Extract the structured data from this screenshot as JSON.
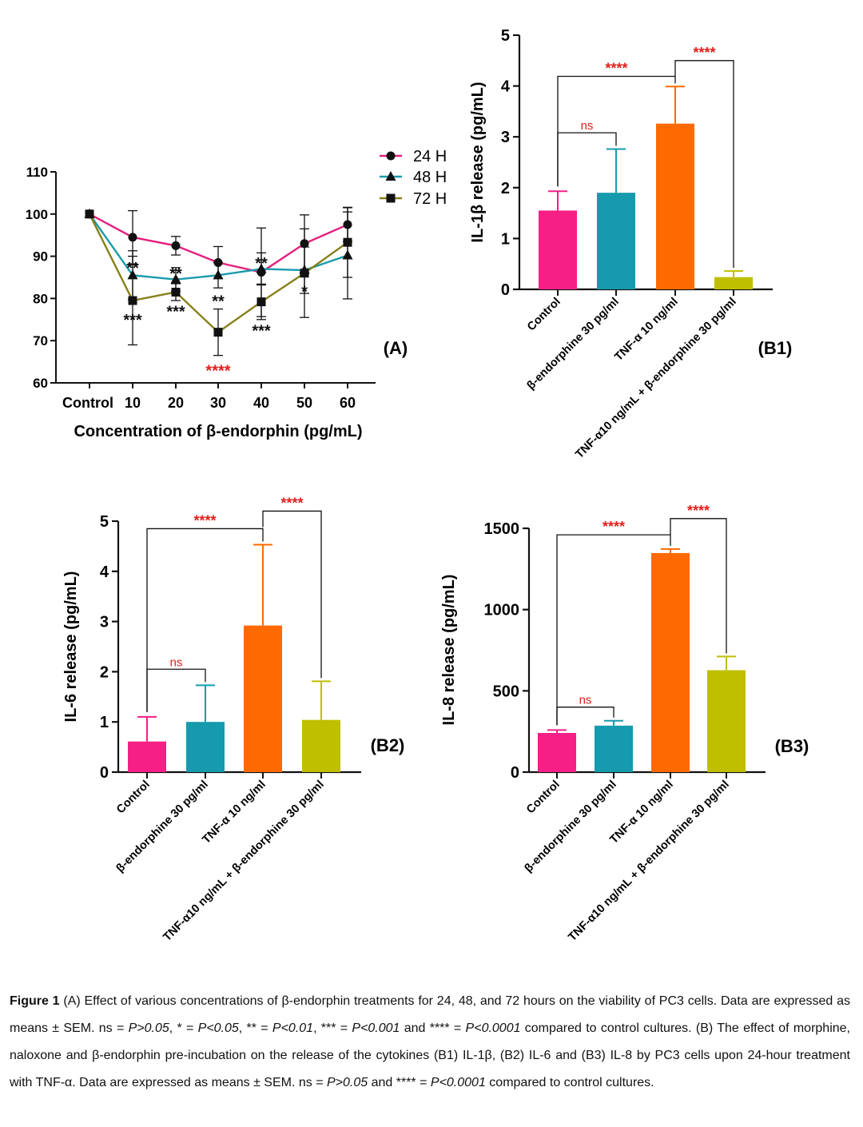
{
  "chart_data": [
    {
      "id": "A",
      "type": "line",
      "panel_label": "(A)",
      "xlabel": "Concentration of β-endorphin (pg/mL)",
      "ylabel": "",
      "categories": [
        "Control",
        "10",
        "20",
        "30",
        "40",
        "50",
        "60"
      ],
      "ylim": [
        60,
        110
      ],
      "yticks": [
        60,
        70,
        80,
        90,
        100,
        110
      ],
      "legend_position": "top-right",
      "series": [
        {
          "name": "24 H",
          "color": "#e5207e",
          "marker": "circle",
          "values": [
            100,
            94.5,
            92.5,
            88.5,
            86.2,
            93,
            97.5
          ],
          "errors": [
            0,
            6.3,
            2.2,
            3.8,
            10.5,
            6.8,
            4
          ]
        },
        {
          "name": "48 H",
          "color": "#1a9bab",
          "marker": "triangle",
          "values": [
            100,
            85.5,
            84.5,
            85.5,
            87,
            86.7,
            90.2
          ],
          "errors": [
            0,
            5.8,
            2.8,
            3,
            3.8,
            5.5,
            10.3
          ]
        },
        {
          "name": "72 H",
          "color": "#87801b",
          "marker": "square",
          "values": [
            100,
            79.5,
            81.5,
            72,
            79.2,
            86,
            93.3
          ],
          "errors": [
            0,
            10.5,
            2,
            5.5,
            4.2,
            10.5,
            8.3
          ]
        }
      ],
      "significance": [
        {
          "index": 1,
          "text": "**",
          "at": 87.8,
          "color": "#111"
        },
        {
          "index": 1,
          "text": "***",
          "at": 75.5,
          "color": "#111"
        },
        {
          "index": 2,
          "text": "**",
          "at": 86.5,
          "color": "#111"
        },
        {
          "index": 2,
          "text": "***",
          "at": 77.5,
          "color": "#111"
        },
        {
          "index": 3,
          "text": "**",
          "at": 80,
          "color": "#111"
        },
        {
          "index": 3,
          "text": "****",
          "at": 63.5,
          "color": "#e0201c"
        },
        {
          "index": 4,
          "text": "**",
          "at": 89,
          "color": "#111"
        },
        {
          "index": 4,
          "text": "***",
          "at": 73,
          "color": "#111"
        },
        {
          "index": 5,
          "text": "*",
          "at": 82.3,
          "color": "#111"
        }
      ]
    },
    {
      "id": "B1",
      "type": "bar",
      "panel_label": "(B1)",
      "ylabel": "IL-1β release (pg/mL)",
      "categories": [
        "Control",
        "β-endorphine 30 pg/ml",
        "TNF-α 10 ng/ml",
        "TNF-α10 ng/mL + β-endorphine 30 pg/ml"
      ],
      "values": [
        1.55,
        1.9,
        3.26,
        0.24
      ],
      "errors": [
        0.38,
        0.86,
        0.73,
        0.12
      ],
      "colors": [
        "#f51f85",
        "#169aad",
        "#ff6a00",
        "#bfbf00"
      ],
      "ylim": [
        0,
        5
      ],
      "yticks": [
        0,
        1,
        2,
        3,
        4,
        5
      ],
      "comparisons": [
        {
          "from": 0,
          "to": 1,
          "text": "ns",
          "at": 3.08
        },
        {
          "from": 0,
          "to": 2,
          "text": "****",
          "at": 4.19
        },
        {
          "from": 2,
          "to": 3,
          "text": "****",
          "at": 4.5
        }
      ]
    },
    {
      "id": "B2",
      "type": "bar",
      "panel_label": "(B2)",
      "ylabel": "IL-6 release (pg/mL)",
      "categories": [
        "Control",
        "β-endorphine 30 pg/ml",
        "TNF-α 10 ng/ml",
        "TNF-α10 ng/mL + β-endorphine 30 pg/ml"
      ],
      "values": [
        0.61,
        1.0,
        2.92,
        1.04
      ],
      "errors": [
        0.49,
        0.73,
        1.61,
        0.77
      ],
      "colors": [
        "#f51f85",
        "#169aad",
        "#ff6a00",
        "#bfbf00"
      ],
      "ylim": [
        0,
        5
      ],
      "yticks": [
        0,
        1,
        2,
        3,
        4,
        5
      ],
      "comparisons": [
        {
          "from": 0,
          "to": 1,
          "text": "ns",
          "at": 2.05
        },
        {
          "from": 0,
          "to": 2,
          "text": "****",
          "at": 4.85
        },
        {
          "from": 2,
          "to": 3,
          "text": "****",
          "at": 5.2
        }
      ]
    },
    {
      "id": "B3",
      "type": "bar",
      "panel_label": "(B3)",
      "ylabel": "IL-8 release (pg/mL)",
      "categories": [
        "Control",
        "β-endorphine 30 pg/ml",
        "TNF-α 10 ng/ml",
        "TNF-α10 ng/mL + β-endorphine 30 pg/ml"
      ],
      "values": [
        241,
        286,
        1348,
        627
      ],
      "errors": [
        18,
        30,
        25,
        84
      ],
      "colors": [
        "#f51f85",
        "#169aad",
        "#ff6a00",
        "#bfbf00"
      ],
      "ylim": [
        0,
        1500
      ],
      "yticks": [
        0,
        500,
        1000,
        1500
      ],
      "comparisons": [
        {
          "from": 0,
          "to": 1,
          "text": "ns",
          "at": 400
        },
        {
          "from": 0,
          "to": 2,
          "text": "****",
          "at": 1460
        },
        {
          "from": 2,
          "to": 3,
          "text": "****",
          "at": 1560
        }
      ]
    }
  ],
  "caption": {
    "figure_label": "Figure 1",
    "parts": [
      {
        "style": "normal",
        "text": " (A) Effect of various concentrations of β-endorphin treatments for 24, 48, and 72 hours on the viability of PC3 cells. Data are expressed as means ± SEM. ns = "
      },
      {
        "style": "italic",
        "text": "P>0.05"
      },
      {
        "style": "normal",
        "text": ", * = "
      },
      {
        "style": "italic",
        "text": "P<0.05"
      },
      {
        "style": "normal",
        "text": ", ** = "
      },
      {
        "style": "italic",
        "text": "P<0.01"
      },
      {
        "style": "normal",
        "text": ", *** = "
      },
      {
        "style": "italic",
        "text": "P<0.001"
      },
      {
        "style": "normal",
        "text": " and **** = "
      },
      {
        "style": "italic",
        "text": "P<0.0001"
      },
      {
        "style": "normal",
        "text": " compared to control cultures. (B) The effect of morphine, naloxone and β-endorphin pre-incubation on the release of the cytokines (B1) IL-1β, (B2) IL-6 and (B3) IL-8 by PC3 cells upon 24-hour treatment with TNF-α. Data are expressed as means ± SEM. ns = "
      },
      {
        "style": "italic",
        "text": "P>0.05"
      },
      {
        "style": "normal",
        "text": " and **** = "
      },
      {
        "style": "italic",
        "text": "P<0.0001"
      },
      {
        "style": "normal",
        "text": " compared to control cultures."
      }
    ]
  }
}
